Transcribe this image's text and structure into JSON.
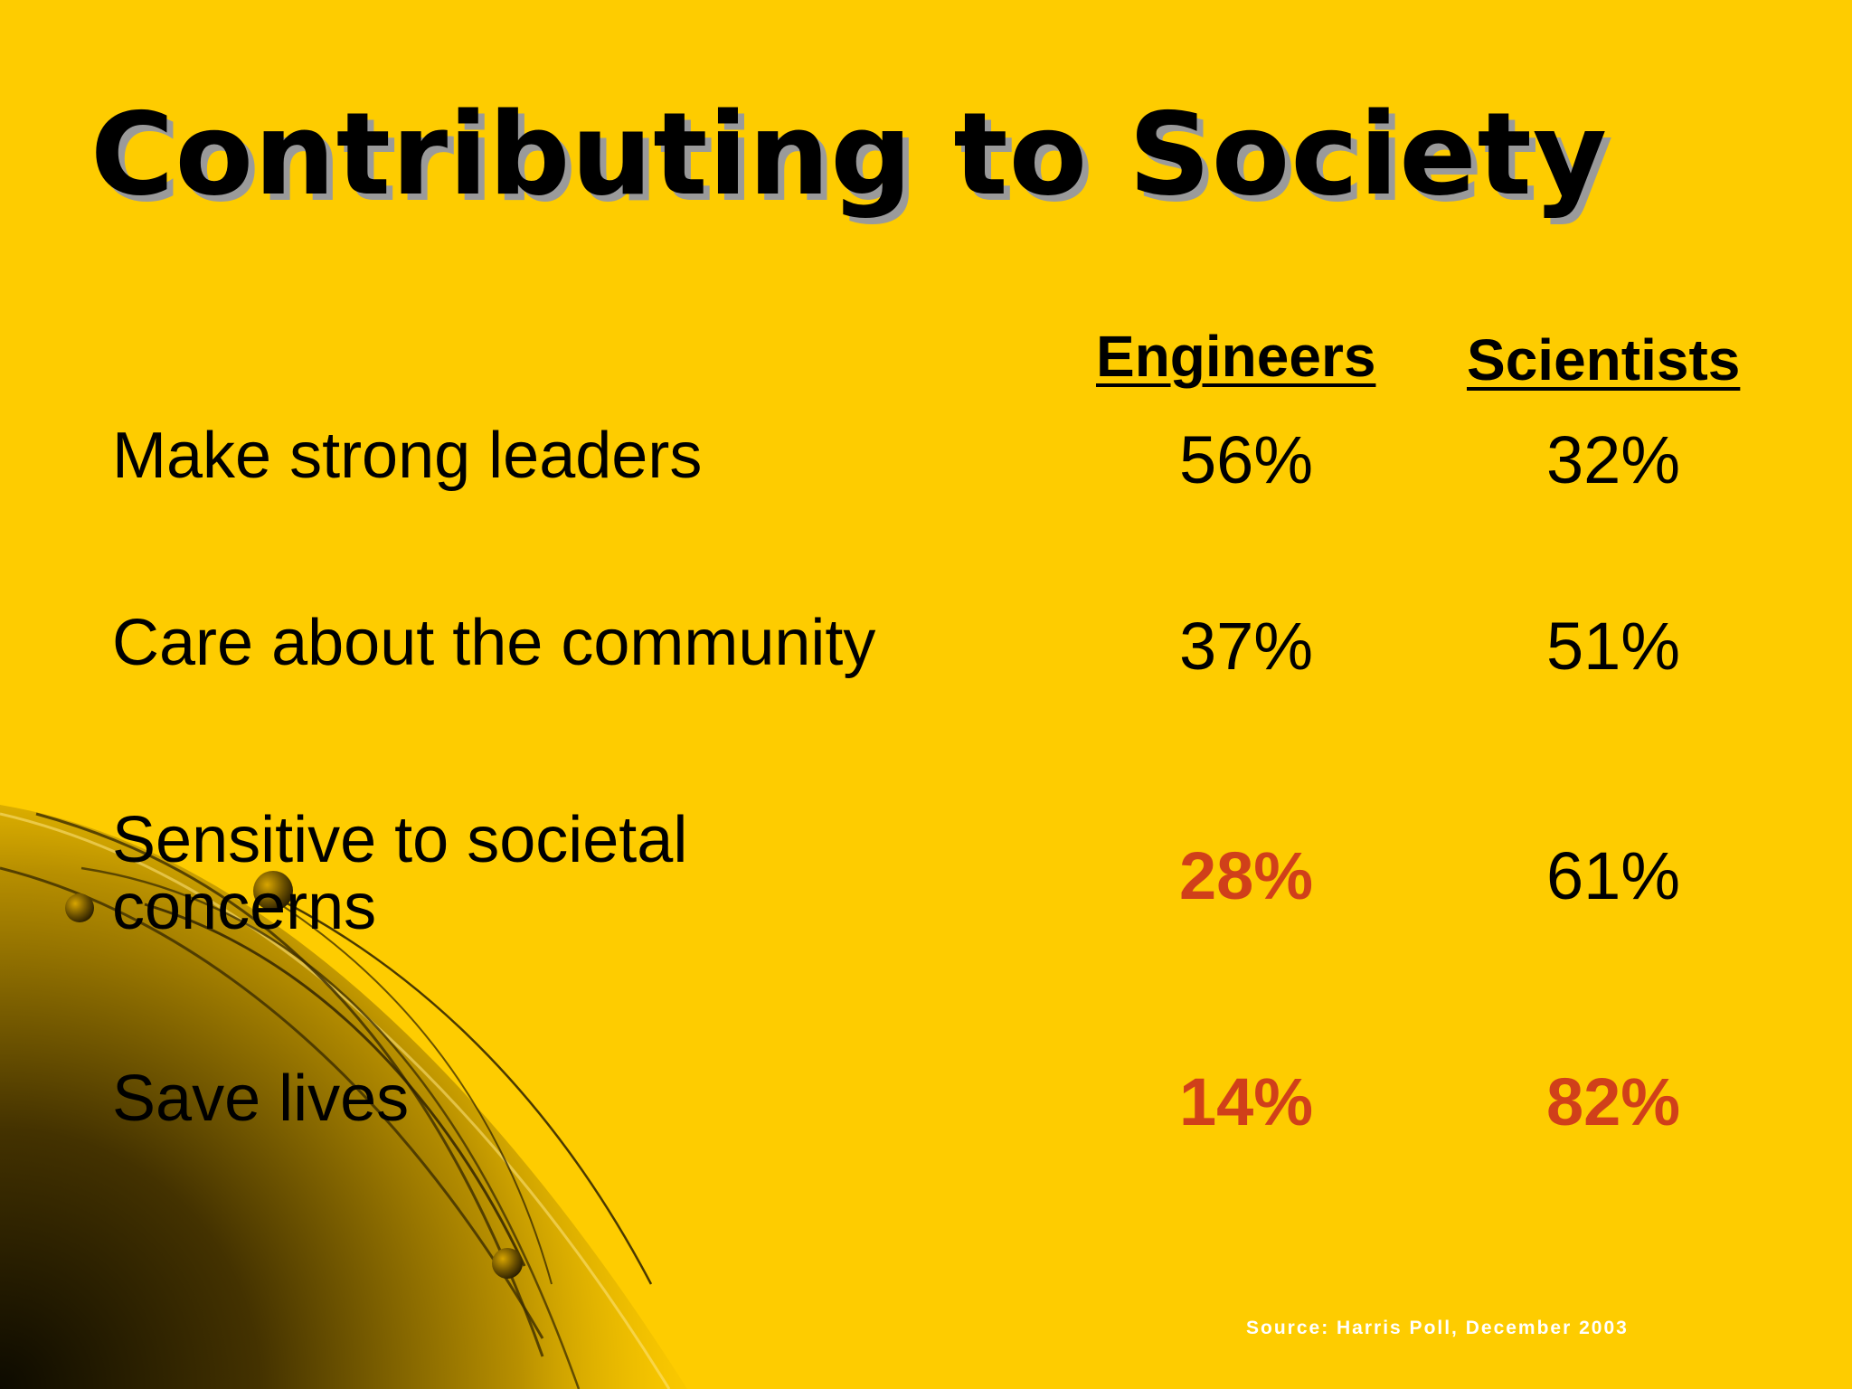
{
  "title": "Contributing to Society",
  "columns": {
    "engineers": "Engineers",
    "scientists": "Scientists"
  },
  "rows": [
    {
      "label": "Make strong leaders",
      "engineers": "56%",
      "scientists": "32%"
    },
    {
      "label_line1": "Care about the community",
      "engineers": "37%",
      "scientists": "51%"
    },
    {
      "label_line1": "Sensitive to societal",
      "label_line2": "concerns",
      "engineers": "28%",
      "scientists": "61%"
    },
    {
      "label": "Save lives",
      "engineers": "14%",
      "scientists": "82%"
    }
  ],
  "highlight_color": "#D0401A",
  "background_color": "#FECC00",
  "source": "Source: Harris Poll, December 2003"
}
